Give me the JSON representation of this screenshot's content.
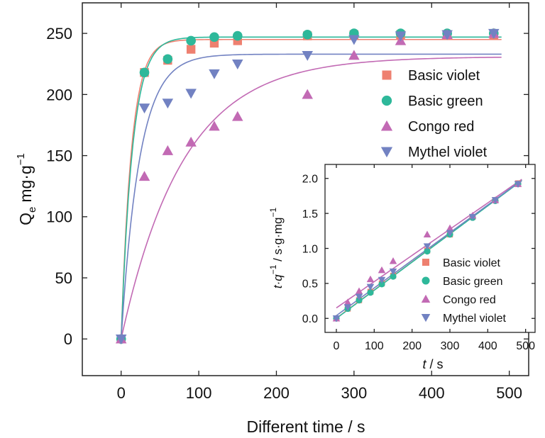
{
  "chart_data": [
    {
      "type": "scatter",
      "title": "",
      "xlabel": "Different time / s",
      "ylabel_main": "Q",
      "ylabel_sub": "e",
      "ylabel_unit": "mg·g",
      "ylabel_exp": "−1",
      "xlim": [
        -50,
        525
      ],
      "ylim": [
        -30,
        275
      ],
      "xticks": [
        0,
        100,
        200,
        300,
        400,
        500
      ],
      "yticks": [
        0,
        50,
        100,
        150,
        200,
        250
      ],
      "legend_position": "right",
      "series": [
        {
          "name": "Basic violet",
          "marker": "square",
          "color": "#ee8070",
          "x": [
            0,
            30,
            60,
            90,
            120,
            150,
            240,
            300,
            360,
            420,
            480
          ],
          "y": [
            0,
            218,
            228,
            237,
            242,
            244,
            248,
            249,
            249,
            249,
            249
          ],
          "fit": {
            "qe": 245,
            "k": 0.075
          }
        },
        {
          "name": "Basic green",
          "marker": "circle",
          "color": "#2eb89a",
          "x": [
            0,
            30,
            60,
            90,
            120,
            150,
            240,
            300,
            360,
            420,
            480
          ],
          "y": [
            0,
            218,
            229,
            244,
            247,
            248,
            249,
            250,
            250,
            250,
            250
          ],
          "fit": {
            "qe": 247,
            "k": 0.068
          }
        },
        {
          "name": "Congo red",
          "marker": "triangle-up",
          "color": "#c26ab4",
          "x": [
            0,
            30,
            60,
            90,
            120,
            150,
            240,
            300,
            360,
            420,
            480
          ],
          "y": [
            0,
            133,
            154,
            161,
            174,
            182,
            200,
            232,
            244,
            249,
            250
          ],
          "fit": {
            "qe": 231,
            "k": 0.0125
          }
        },
        {
          "name": "Mythel violet",
          "marker": "triangle-down",
          "color": "#7282c2",
          "x": [
            0,
            30,
            60,
            90,
            120,
            150,
            240,
            300,
            360,
            420,
            480
          ],
          "y": [
            0,
            189,
            193,
            201,
            217,
            225,
            232,
            245,
            248,
            249,
            250
          ],
          "fit": {
            "qe": 233,
            "k": 0.042
          }
        }
      ]
    },
    {
      "type": "scatter",
      "title": "",
      "xlabel_var": "t",
      "xlabel_unit": " / s",
      "ylabel_a": "t",
      "ylabel_b": "·q",
      "ylabel_exp": "−1",
      "ylabel_unit": " / s·g·mg",
      "ylabel_unit_exp": "−1",
      "xlim": [
        -30,
        525
      ],
      "ylim": [
        -0.2,
        2.2
      ],
      "xticks": [
        0,
        100,
        200,
        300,
        400,
        500
      ],
      "yticks": [
        "0.0",
        "0.5",
        "1.0",
        "1.5",
        "2.0"
      ],
      "legend_position": "bottom-right",
      "series": [
        {
          "name": "Basic violet",
          "marker": "square",
          "color": "#ee8070",
          "x": [
            0,
            30,
            60,
            90,
            120,
            150,
            240,
            300,
            360,
            420,
            480
          ],
          "y": [
            0,
            0.14,
            0.26,
            0.38,
            0.5,
            0.61,
            0.97,
            1.2,
            1.45,
            1.69,
            1.93
          ],
          "fit": {
            "a": 0.003,
            "b": 0.00402
          }
        },
        {
          "name": "Basic green",
          "marker": "circle",
          "color": "#2eb89a",
          "x": [
            0,
            30,
            60,
            90,
            120,
            150,
            240,
            300,
            360,
            420,
            480
          ],
          "y": [
            0,
            0.14,
            0.26,
            0.37,
            0.49,
            0.6,
            0.96,
            1.2,
            1.44,
            1.68,
            1.92
          ],
          "fit": {
            "a": 0.0,
            "b": 0.00402
          }
        },
        {
          "name": "Congo red",
          "marker": "triangle-up",
          "color": "#c26ab4",
          "x": [
            0,
            30,
            60,
            90,
            120,
            150,
            240,
            300,
            360,
            420,
            480
          ],
          "y": [
            0,
            0.23,
            0.39,
            0.56,
            0.69,
            0.82,
            1.2,
            1.29,
            1.47,
            1.69,
            1.92
          ],
          "fit": {
            "a": 0.15,
            "b": 0.00375
          }
        },
        {
          "name": "Mythel violet",
          "marker": "triangle-down",
          "color": "#7282c2",
          "x": [
            0,
            30,
            60,
            90,
            120,
            150,
            240,
            300,
            360,
            420,
            480
          ],
          "y": [
            0,
            0.16,
            0.31,
            0.45,
            0.55,
            0.67,
            1.03,
            1.22,
            1.45,
            1.69,
            1.92
          ],
          "fit": {
            "a": 0.04,
            "b": 0.00395
          }
        }
      ]
    }
  ]
}
